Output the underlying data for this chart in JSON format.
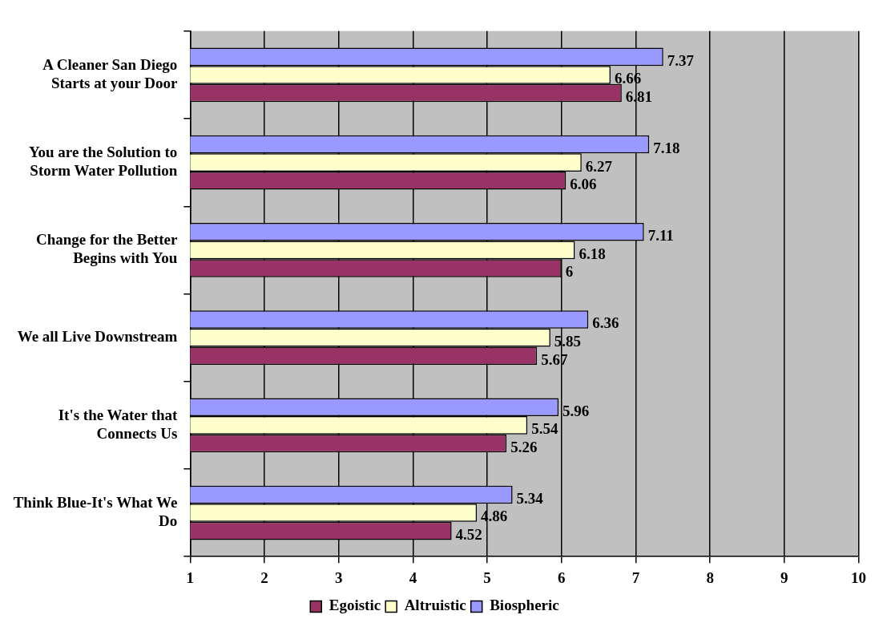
{
  "chart_data": {
    "type": "bar",
    "orientation": "horizontal",
    "categories": [
      "A Cleaner San Diego Starts at your Door",
      "You are the Solution to Storm Water Pollution",
      "Change for the Better Begins with You",
      "We all Live Downstream",
      "It's the Water that Connects Us",
      "Think Blue-It's What We Do"
    ],
    "series": [
      {
        "name": "Egoistic",
        "color": "#993366",
        "values": [
          6.81,
          6.06,
          6,
          5.67,
          5.26,
          4.52
        ]
      },
      {
        "name": "Altruistic",
        "color": "#ffffcc",
        "values": [
          6.66,
          6.27,
          6.18,
          5.85,
          5.54,
          4.86
        ]
      },
      {
        "name": "Biospheric",
        "color": "#9999ff",
        "values": [
          7.37,
          7.18,
          7.11,
          6.36,
          5.96,
          5.34
        ]
      }
    ],
    "xlim": [
      1,
      10
    ],
    "xticks": [
      1,
      2,
      3,
      4,
      5,
      6,
      7,
      8,
      9,
      10
    ],
    "grid": "x",
    "legend": "bottom",
    "data_labels": true
  }
}
